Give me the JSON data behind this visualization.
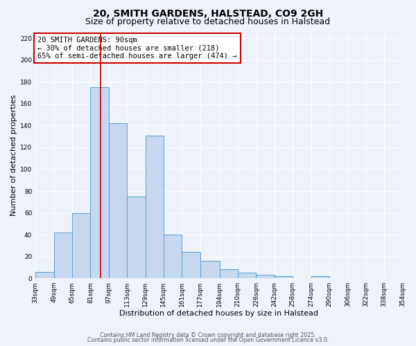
{
  "title": "20, SMITH GARDENS, HALSTEAD, CO9 2GH",
  "subtitle": "Size of property relative to detached houses in Halstead",
  "xlabel": "Distribution of detached houses by size in Halstead",
  "ylabel": "Number of detached properties",
  "bar_values": [
    6,
    42,
    60,
    175,
    142,
    75,
    131,
    40,
    24,
    16,
    8,
    5,
    3,
    2,
    0,
    2,
    0,
    0,
    0,
    0,
    2
  ],
  "bin_edges": [
    33,
    49,
    65,
    81,
    97,
    113,
    129,
    145,
    161,
    177,
    194,
    210,
    226,
    242,
    258,
    274,
    290,
    306,
    322,
    338,
    354
  ],
  "x_tick_labels": [
    "33sqm",
    "49sqm",
    "65sqm",
    "81sqm",
    "97sqm",
    "113sqm",
    "129sqm",
    "145sqm",
    "161sqm",
    "177sqm",
    "194sqm",
    "210sqm",
    "226sqm",
    "242sqm",
    "258sqm",
    "274sqm",
    "290sqm",
    "306sqm",
    "322sqm",
    "338sqm",
    "354sqm"
  ],
  "bar_color": "#c5d8f0",
  "bar_edge_color": "#5a9fd4",
  "property_line_x": 90,
  "property_line_color": "#cc0000",
  "annotation_line1": "20 SMITH GARDENS: 90sqm",
  "annotation_line2": "← 30% of detached houses are smaller (218)",
  "annotation_line3": "65% of semi-detached houses are larger (474) →",
  "annotation_bbox_color": "white",
  "annotation_bbox_edge": "#cc0000",
  "ylim": [
    0,
    225
  ],
  "yticks": [
    0,
    20,
    40,
    60,
    80,
    100,
    120,
    140,
    160,
    180,
    200,
    220
  ],
  "footer1": "Contains HM Land Registry data © Crown copyright and database right 2025.",
  "footer2": "Contains public sector information licensed under the Open Government Licence v3.0.",
  "bg_color": "#eef3fb",
  "plot_bg_color": "#eef3fb",
  "grid_color": "white",
  "title_fontsize": 10,
  "subtitle_fontsize": 9,
  "axis_label_fontsize": 8,
  "tick_fontsize": 6.5,
  "annotation_fontsize": 7.5,
  "footer_fontsize": 5.8
}
